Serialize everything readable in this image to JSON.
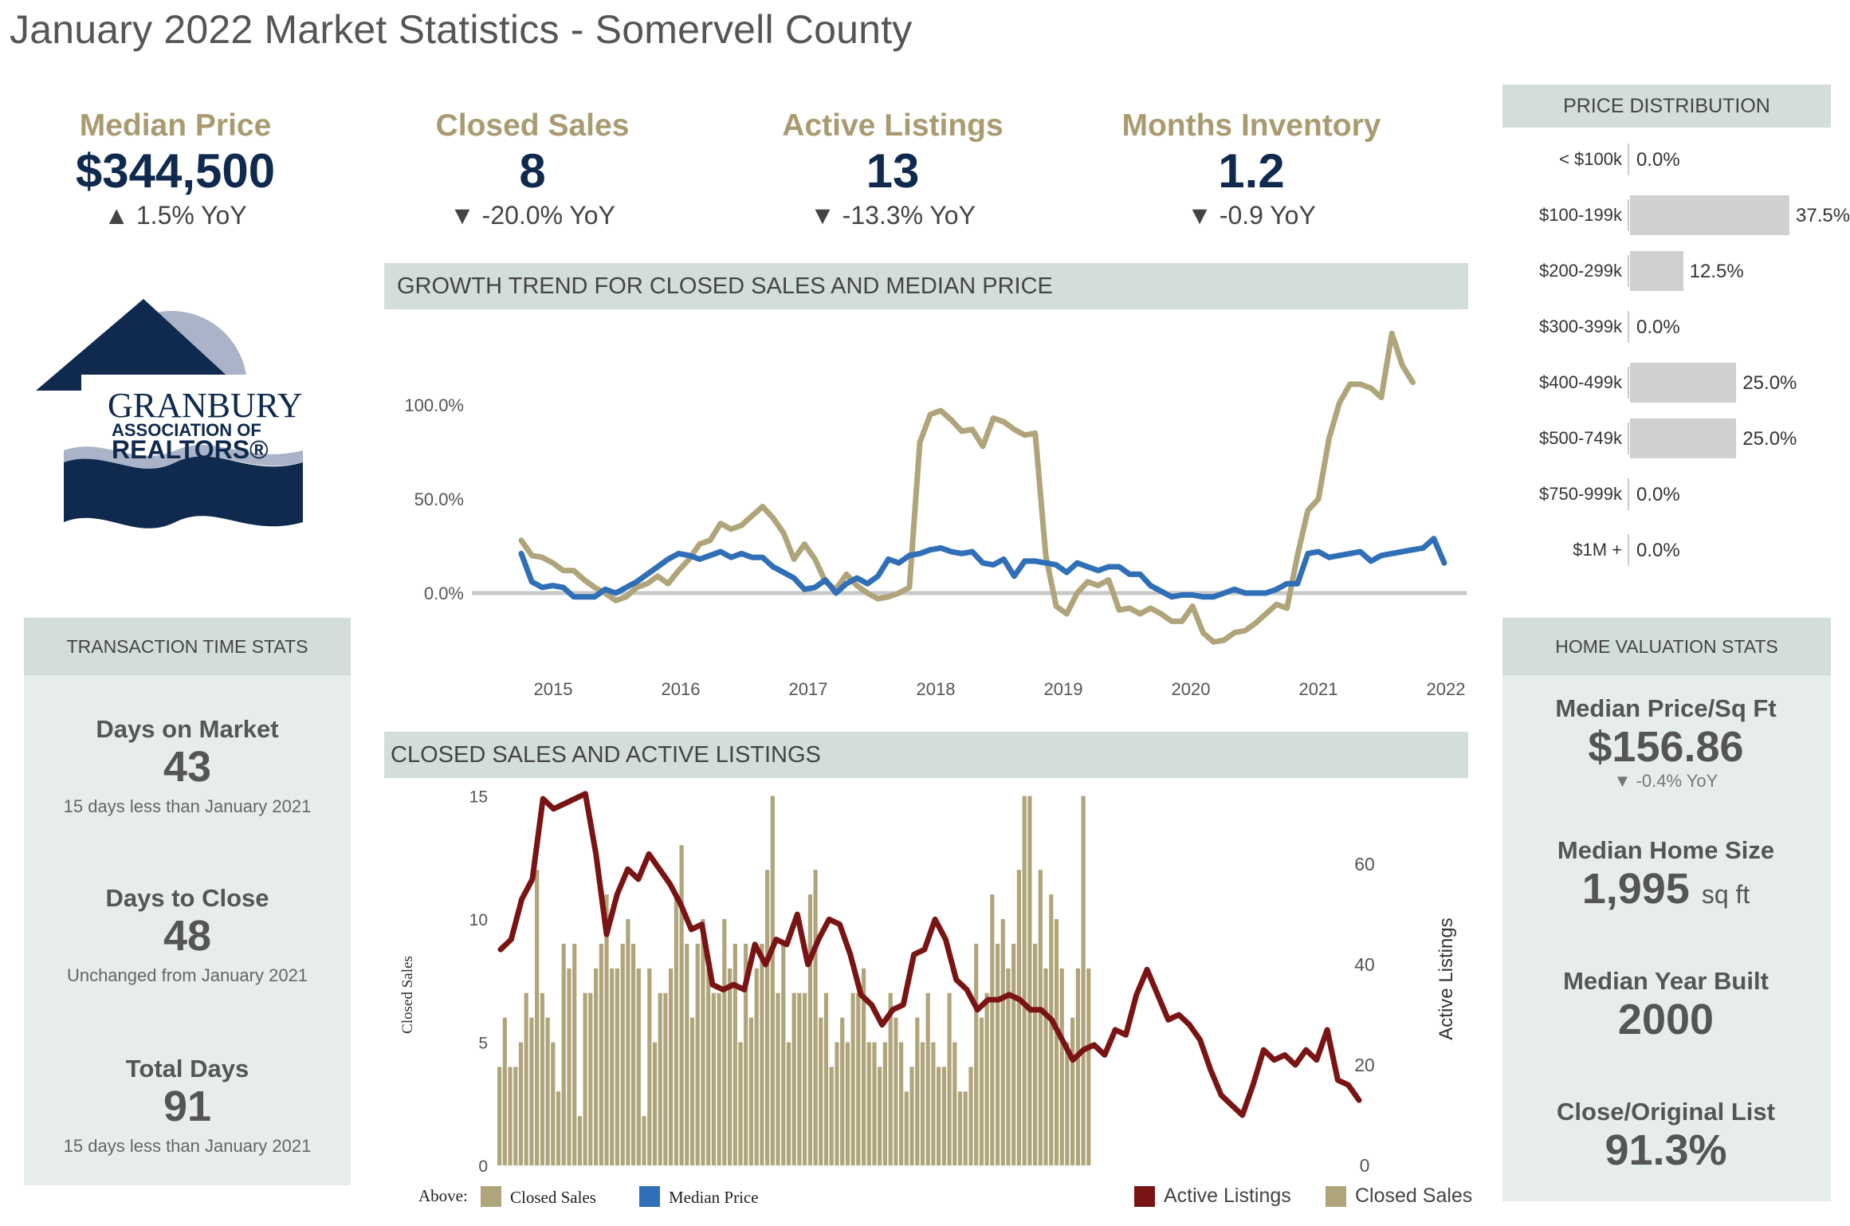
{
  "page_title": "January 2022 Market Statistics - Somervell County",
  "kpis": [
    {
      "label": "Median Price",
      "value": "$344,500",
      "yoy": "▲ 1.5% YoY"
    },
    {
      "label": "Closed Sales",
      "value": "8",
      "yoy": "▼ -20.0% YoY"
    },
    {
      "label": "Active Listings",
      "value": "13",
      "yoy": "▼ -13.3% YoY"
    },
    {
      "label": "Months Inventory",
      "value": "1.2",
      "yoy": "▼ -0.9 YoY"
    }
  ],
  "logo": {
    "line1": "GRANBURY",
    "line2": "ASSOCIATION OF",
    "line3": "REALTORS®"
  },
  "transaction_stats": {
    "header": "TRANSACTION TIME STATS",
    "items": [
      {
        "label": "Days on Market",
        "value": "43",
        "sub": "15 days less than January 2021"
      },
      {
        "label": "Days to Close",
        "value": "48",
        "sub": "Unchanged from January 2021"
      },
      {
        "label": "Total Days",
        "value": "91",
        "sub": "15 days less than January 2021"
      }
    ]
  },
  "price_distribution": {
    "header": "PRICE DISTRIBUTION",
    "rows": [
      {
        "label": "< $100k",
        "pct": "0.0%",
        "value": 0.0
      },
      {
        "label": "$100-199k",
        "pct": "37.5%",
        "value": 37.5
      },
      {
        "label": "$200-299k",
        "pct": "12.5%",
        "value": 12.5
      },
      {
        "label": "$300-399k",
        "pct": "0.0%",
        "value": 0.0
      },
      {
        "label": "$400-499k",
        "pct": "25.0%",
        "value": 25.0
      },
      {
        "label": "$500-749k",
        "pct": "25.0%",
        "value": 25.0
      },
      {
        "label": "$750-999k",
        "pct": "0.0%",
        "value": 0.0
      },
      {
        "label": "$1M +",
        "pct": "0.0%",
        "value": 0.0
      }
    ]
  },
  "home_valuation": {
    "header": "HOME VALUATION STATS",
    "items": [
      {
        "label": "Median Price/Sq Ft",
        "value": "$156.86",
        "sub": "▼ -0.4% YoY"
      },
      {
        "label": "Median Home Size",
        "value": "1,995",
        "unit": "sq ft"
      },
      {
        "label": "Median Year Built",
        "value": "2000"
      },
      {
        "label": "Close/Original List",
        "value": "91.3%"
      }
    ]
  },
  "growth_chart_header": "GROWTH TREND FOR CLOSED SALES AND MEDIAN PRICE",
  "sales_chart_header": "CLOSED SALES AND ACTIVE LISTINGS",
  "legend_above": "Above:",
  "colors": {
    "tan": "#b0a47a",
    "blue": "#2f6fb7",
    "darkred": "#7a1414",
    "banner": "#d3ddd9",
    "panel": "#e7ecec",
    "navy": "#0f2a4e"
  },
  "chart_data": [
    {
      "type": "line",
      "title": "GROWTH TREND FOR CLOSED SALES AND MEDIAN PRICE",
      "x_ticks": [
        "2015",
        "2016",
        "2017",
        "2018",
        "2019",
        "2020",
        "2021",
        "2022"
      ],
      "y_ticks": [
        "0.0%",
        "50.0%",
        "100.0%"
      ],
      "ylim": [
        -30,
        140
      ],
      "x_start": "2014-10",
      "series": [
        {
          "name": "Closed Sales",
          "color": "#b0a47a",
          "values": [
            28,
            20,
            19,
            16,
            12,
            12,
            7,
            3,
            0,
            -4,
            -2,
            3,
            5,
            9,
            5,
            12,
            18,
            26,
            28,
            37,
            34,
            36,
            41,
            46,
            40,
            32,
            18,
            26,
            18,
            6,
            2,
            10,
            4,
            0,
            -3,
            -2,
            0,
            3,
            80,
            95,
            97,
            92,
            86,
            87,
            78,
            93,
            91,
            87,
            84,
            85,
            20,
            -7,
            -11,
            0,
            6,
            4,
            7,
            -9,
            -8,
            -11,
            -8,
            -11,
            -15,
            -15,
            -7,
            -21,
            -26,
            -25,
            -21,
            -20,
            -16,
            -11,
            -6,
            -8,
            20,
            44,
            50,
            82,
            101,
            111,
            111,
            109,
            104,
            138,
            121,
            112
          ]
        },
        {
          "name": "Median Price",
          "color": "#2f6fb7",
          "values": [
            21,
            6,
            3,
            4,
            3,
            -2,
            -2,
            -2,
            2,
            0,
            3,
            6,
            10,
            14,
            18,
            21,
            20,
            18,
            20,
            22,
            19,
            21,
            19,
            19,
            14,
            11,
            8,
            2,
            3,
            7,
            0,
            5,
            8,
            5,
            9,
            18,
            16,
            20,
            21,
            23,
            24,
            22,
            21,
            22,
            16,
            15,
            18,
            9,
            17,
            17,
            16,
            15,
            11,
            16,
            14,
            12,
            14,
            14,
            10,
            10,
            4,
            1,
            -2,
            -1,
            -1,
            -2,
            -2,
            0,
            2,
            0,
            0,
            0,
            2,
            5,
            5,
            21,
            22,
            19,
            20,
            21,
            22,
            17,
            20,
            21,
            22,
            23,
            24,
            29,
            16
          ]
        }
      ]
    },
    {
      "type": "bar+line",
      "title": "CLOSED SALES AND ACTIVE LISTINGS",
      "ylabel": "Closed Sales",
      "y2label": "Active Listings",
      "ylim": [
        0,
        15
      ],
      "y2lim": [
        0,
        75
      ],
      "y_ticks": [
        "0",
        "5",
        "10",
        "15"
      ],
      "y2_ticks": [
        "0",
        "20",
        "40",
        "60"
      ],
      "series": [
        {
          "name": "Closed Sales",
          "type": "bar",
          "color": "#b0a47a",
          "values": [
            4,
            6,
            4,
            4,
            5,
            7,
            6,
            12,
            7,
            6,
            5,
            3,
            9,
            8,
            9,
            2,
            7,
            7,
            8,
            9,
            11,
            8,
            8,
            9,
            10,
            9,
            8,
            2,
            8,
            5,
            7,
            7,
            8,
            11,
            13,
            9,
            6,
            9,
            10,
            8,
            7,
            7,
            10,
            8,
            9,
            5,
            9,
            6,
            8,
            9,
            12,
            15,
            7,
            9,
            5,
            7,
            7,
            7,
            11,
            12,
            6,
            7,
            4,
            5,
            6,
            5,
            7,
            7,
            8,
            5,
            5,
            4,
            5,
            7,
            6,
            5,
            3,
            4,
            6,
            5,
            7,
            5,
            4,
            4,
            7,
            5,
            3,
            3,
            4,
            9,
            6,
            7,
            11,
            9,
            10,
            8,
            9,
            12,
            15,
            15,
            9,
            12,
            8,
            11,
            10,
            8,
            5,
            6,
            8,
            15,
            8
          ]
        },
        {
          "name": "Active Listings",
          "type": "line",
          "color": "#7a1414",
          "values": [
            43,
            45,
            53,
            57,
            73,
            71,
            72,
            73,
            74,
            62,
            46,
            54,
            59,
            57,
            62,
            59,
            56,
            52,
            47,
            48,
            36,
            35,
            36,
            35,
            44,
            40,
            45,
            44,
            50,
            40,
            45,
            49,
            48,
            42,
            34,
            32,
            28,
            31,
            32,
            42,
            43,
            49,
            45,
            37,
            35,
            31,
            33,
            33,
            34,
            33,
            31,
            31,
            29,
            25,
            21,
            23,
            24,
            22,
            27,
            26,
            34,
            39,
            34,
            29,
            30,
            28,
            25,
            19,
            14,
            12,
            10,
            16,
            23,
            21,
            22,
            20,
            23,
            21,
            27,
            17,
            16,
            13
          ]
        }
      ]
    },
    {
      "type": "bar",
      "title": "PRICE DISTRIBUTION",
      "categories": [
        "< $100k",
        "$100-199k",
        "$200-299k",
        "$300-399k",
        "$400-499k",
        "$500-749k",
        "$750-999k",
        "$1M +"
      ],
      "values": [
        0.0,
        37.5,
        12.5,
        0.0,
        25.0,
        25.0,
        0.0,
        0.0
      ]
    }
  ],
  "legends": {
    "growth": [
      {
        "name": "Closed Sales",
        "color": "#b0a47a"
      },
      {
        "name": "Median Price",
        "color": "#2f6fb7"
      }
    ],
    "sales": [
      {
        "name": "Active Listings",
        "color": "#7a1414"
      },
      {
        "name": "Closed Sales",
        "color": "#b0a47a"
      }
    ]
  }
}
